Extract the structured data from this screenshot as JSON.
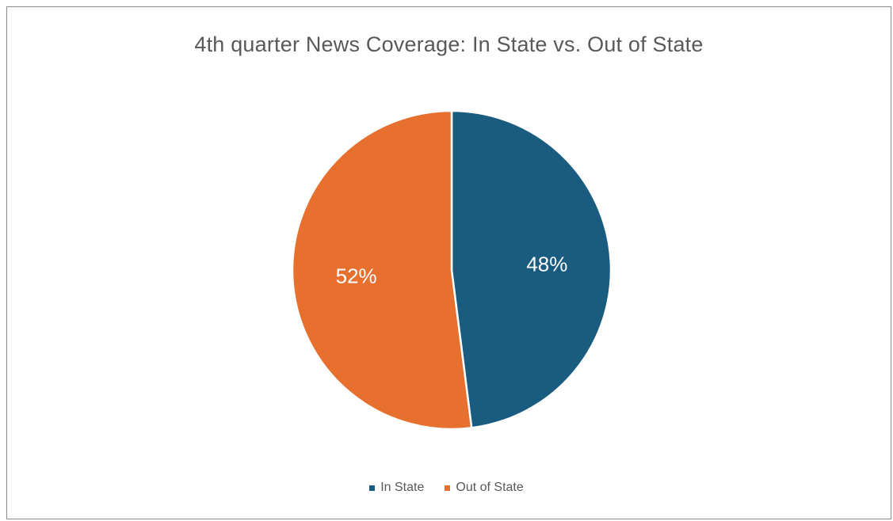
{
  "chart_data": {
    "type": "pie",
    "title": "4th quarter News Coverage: In State vs. Out of State",
    "slices": [
      {
        "label": "In State",
        "value": 48,
        "display": "48%",
        "color": "#1a5c80"
      },
      {
        "label": "Out of State",
        "value": 52,
        "display": "52%",
        "color": "#e7702f"
      }
    ],
    "legend_position": "bottom",
    "start_angle": "12 o'clock, clockwise",
    "label_color": "#ffffff",
    "slice_border_color": "#ffffff"
  }
}
